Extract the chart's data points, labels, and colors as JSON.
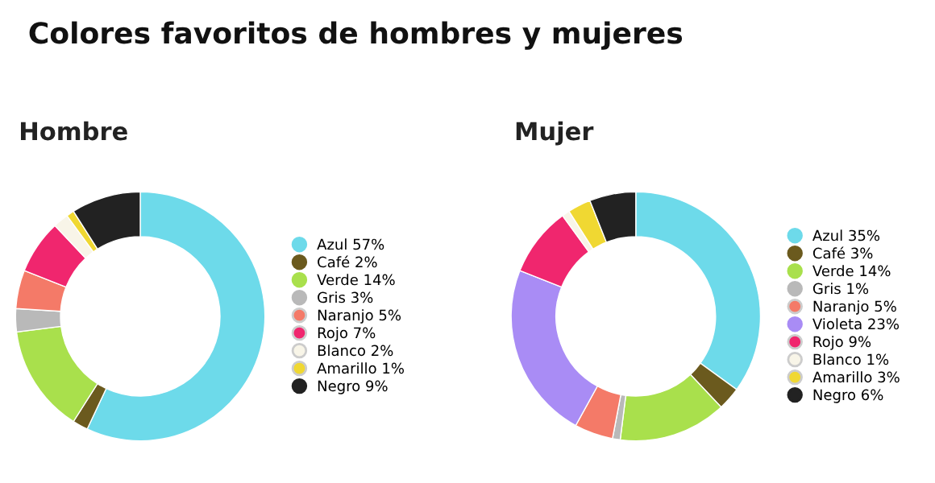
{
  "chart_data": [
    {
      "type": "donut",
      "title": "Colores favoritos de hombres y mujeres",
      "subtitle": "Hombre",
      "legend": "right",
      "categories": [
        "Azul 57%",
        "Café 2%",
        "Verde 14%",
        "Gris 3%",
        "Naranjo 5%",
        "Rojo 7%",
        "Blanco 2%",
        "Amarillo 1%",
        "Negro 9%"
      ],
      "values": [
        57,
        2,
        14,
        3,
        5,
        7,
        2,
        1,
        9
      ],
      "colors": [
        "#6ddaea",
        "#6b5a1e",
        "#a9e04c",
        "#b9b9b9",
        "#f47a68",
        "#f0266e",
        "#f8f5e8",
        "#f0d832",
        "#222222"
      ]
    },
    {
      "type": "donut",
      "subtitle": "Mujer",
      "legend": "right",
      "categories": [
        "Azul 35%",
        "Café 3%",
        "Verde 14%",
        "Gris 1%",
        "Naranjo 5%",
        "Violeta 23%",
        "Rojo 9%",
        "Blanco 1%",
        "Amarillo 3%",
        "Negro 6%"
      ],
      "values": [
        35,
        3,
        14,
        1,
        5,
        23,
        9,
        1,
        3,
        6
      ],
      "colors": [
        "#6ddaea",
        "#6b5a1e",
        "#a9e04c",
        "#b9b9b9",
        "#f47a68",
        "#a98cf5",
        "#f0266e",
        "#f8f5e8",
        "#f0d832",
        "#222222"
      ]
    }
  ]
}
